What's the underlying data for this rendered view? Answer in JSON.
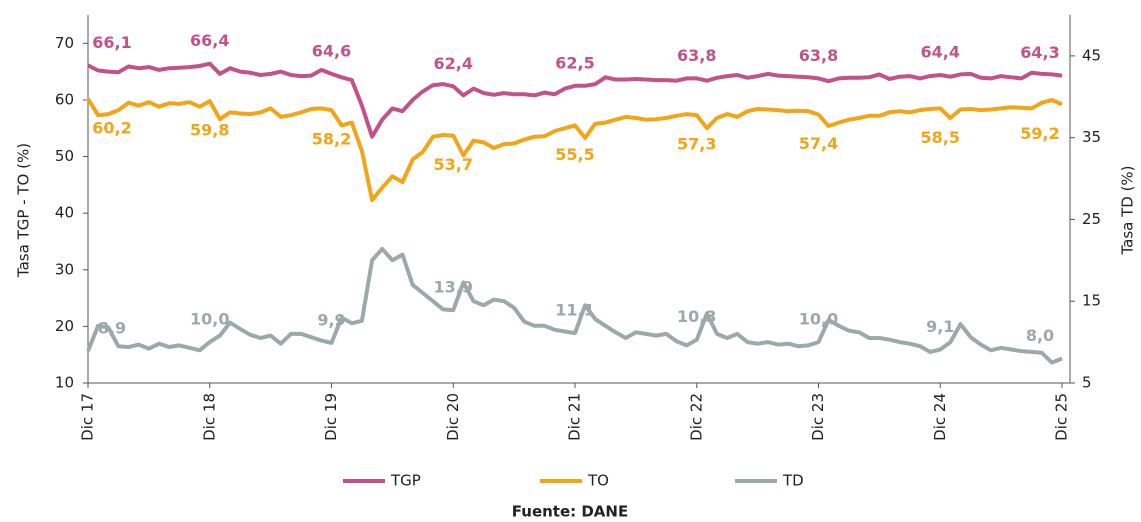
{
  "chart_data": {
    "type": "line",
    "y_label": "Tasa TGP - TO (%)",
    "y2_label": "Tasa TD (%)",
    "source": "Fuente: DANE",
    "ylim": [
      10,
      75
    ],
    "yticks": [
      10,
      20,
      30,
      40,
      50,
      60,
      70
    ],
    "y2lim": [
      5,
      50
    ],
    "y2ticks": [
      5,
      15,
      25,
      35,
      45
    ],
    "categories": [
      "Dic 17",
      null,
      null,
      null,
      null,
      null,
      null,
      null,
      null,
      null,
      null,
      null,
      "Dic 18",
      null,
      null,
      null,
      null,
      null,
      null,
      null,
      null,
      null,
      null,
      null,
      "Dic 19",
      null,
      null,
      null,
      null,
      null,
      null,
      null,
      null,
      null,
      null,
      null,
      "Dic 20",
      null,
      null,
      null,
      null,
      null,
      null,
      null,
      null,
      null,
      null,
      null,
      "Dic 21",
      null,
      null,
      null,
      null,
      null,
      null,
      null,
      null,
      null,
      null,
      null,
      "Dic 22",
      null,
      null,
      null,
      null,
      null,
      null,
      null,
      null,
      null,
      null,
      null,
      "Dic 23",
      null,
      null,
      null,
      null,
      null,
      null,
      null,
      null,
      null,
      null,
      null,
      "Dic 24",
      null,
      null,
      null,
      null,
      null,
      null,
      null,
      null,
      null,
      null,
      null,
      "Dic 25"
    ],
    "series": [
      {
        "name": "TGP",
        "color": "#c2528a",
        "label_pos": "above",
        "values": [
          66.1,
          65.2,
          65.0,
          64.9,
          65.9,
          65.6,
          65.8,
          65.3,
          65.6,
          65.7,
          65.8,
          66.0,
          66.4,
          64.6,
          65.6,
          65.0,
          64.8,
          64.4,
          64.6,
          65.0,
          64.4,
          64.2,
          64.3,
          65.3,
          64.6,
          64.0,
          63.5,
          59.0,
          53.5,
          56.5,
          58.5,
          58.0,
          60.0,
          61.5,
          62.6,
          62.8,
          62.4,
          60.8,
          62.0,
          61.2,
          60.9,
          61.2,
          61.0,
          61.0,
          60.8,
          61.3,
          61.0,
          62.0,
          62.5,
          62.5,
          62.8,
          64.0,
          63.6,
          63.6,
          63.7,
          63.6,
          63.5,
          63.5,
          63.4,
          63.8,
          63.8,
          63.4,
          63.9,
          64.2,
          64.4,
          63.9,
          64.2,
          64.6,
          64.3,
          64.2,
          64.1,
          64.0,
          63.8,
          63.3,
          63.8,
          63.9,
          63.9,
          64.0,
          64.5,
          63.7,
          64.1,
          64.2,
          63.8,
          64.2,
          64.4,
          64.1,
          64.5,
          64.6,
          63.9,
          63.8,
          64.2,
          64.0,
          63.8,
          64.8,
          64.6,
          64.5,
          64.3
        ],
        "value_labels": [
          "66,1",
          null,
          null,
          null,
          null,
          null,
          null,
          null,
          null,
          null,
          null,
          null,
          "66,4",
          null,
          null,
          null,
          null,
          null,
          null,
          null,
          null,
          null,
          null,
          null,
          "64,6",
          null,
          null,
          null,
          null,
          null,
          null,
          null,
          null,
          null,
          null,
          null,
          "62,4",
          null,
          null,
          null,
          null,
          null,
          null,
          null,
          null,
          null,
          null,
          null,
          "62,5",
          null,
          null,
          null,
          null,
          null,
          null,
          null,
          null,
          null,
          null,
          null,
          "63,8",
          null,
          null,
          null,
          null,
          null,
          null,
          null,
          null,
          null,
          null,
          null,
          "63,8",
          null,
          null,
          null,
          null,
          null,
          null,
          null,
          null,
          null,
          null,
          null,
          "64,4",
          null,
          null,
          null,
          null,
          null,
          null,
          null,
          null,
          null,
          null,
          null,
          "64,3"
        ]
      },
      {
        "name": "TO",
        "color": "#f2a516",
        "label_pos": "below",
        "values": [
          60.2,
          57.3,
          57.5,
          58.2,
          59.5,
          59.0,
          59.6,
          58.8,
          59.4,
          59.3,
          59.6,
          58.8,
          59.8,
          56.6,
          57.8,
          57.6,
          57.5,
          57.8,
          58.5,
          57.0,
          57.3,
          57.8,
          58.4,
          58.5,
          58.2,
          55.5,
          56.0,
          51.0,
          42.3,
          44.5,
          46.5,
          45.5,
          49.5,
          50.8,
          53.5,
          53.8,
          53.7,
          50.2,
          52.8,
          52.5,
          51.5,
          52.2,
          52.3,
          53.0,
          53.5,
          53.6,
          54.5,
          55.0,
          55.5,
          53.3,
          55.8,
          56.0,
          56.5,
          57.0,
          56.8,
          56.5,
          56.6,
          56.8,
          57.2,
          57.5,
          57.3,
          55.0,
          56.8,
          57.5,
          57.0,
          58.0,
          58.4,
          58.3,
          58.2,
          58.0,
          58.1,
          58.0,
          57.4,
          55.4,
          56.0,
          56.5,
          56.8,
          57.2,
          57.2,
          57.8,
          58.0,
          57.8,
          58.2,
          58.4,
          58.5,
          56.8,
          58.3,
          58.4,
          58.2,
          58.3,
          58.5,
          58.7,
          58.6,
          58.5,
          59.5,
          60.0,
          59.2
        ],
        "value_labels": [
          "60,2",
          null,
          null,
          null,
          null,
          null,
          null,
          null,
          null,
          null,
          null,
          null,
          "59,8",
          null,
          null,
          null,
          null,
          null,
          null,
          null,
          null,
          null,
          null,
          null,
          "58,2",
          null,
          null,
          null,
          null,
          null,
          null,
          null,
          null,
          null,
          null,
          null,
          "53,7",
          null,
          null,
          null,
          null,
          null,
          null,
          null,
          null,
          null,
          null,
          null,
          "55,5",
          null,
          null,
          null,
          null,
          null,
          null,
          null,
          null,
          null,
          null,
          null,
          "57,3",
          null,
          null,
          null,
          null,
          null,
          null,
          null,
          null,
          null,
          null,
          null,
          "57,4",
          null,
          null,
          null,
          null,
          null,
          null,
          null,
          null,
          null,
          null,
          null,
          "58,5",
          null,
          null,
          null,
          null,
          null,
          null,
          null,
          null,
          null,
          null,
          null,
          "59,2"
        ]
      },
      {
        "name": "TD",
        "color": "#9aaaa8",
        "axis": "y2",
        "label_pos": "above",
        "values": [
          8.9,
          12.0,
          11.8,
          9.5,
          9.4,
          9.7,
          9.2,
          9.8,
          9.4,
          9.6,
          9.3,
          9.0,
          10.0,
          10.8,
          12.4,
          11.6,
          10.9,
          10.5,
          10.8,
          9.8,
          11.0,
          11.0,
          10.6,
          10.2,
          9.9,
          13.0,
          12.3,
          12.6,
          20.0,
          21.4,
          20.0,
          20.7,
          17.0,
          16.0,
          15.0,
          14.0,
          13.9,
          17.3,
          15.0,
          14.5,
          15.2,
          15.0,
          14.2,
          12.5,
          12.0,
          12.0,
          11.5,
          11.3,
          11.1,
          14.5,
          12.8,
          12.0,
          11.2,
          10.5,
          11.2,
          11.0,
          10.8,
          11.0,
          10.1,
          9.6,
          10.3,
          13.5,
          11.0,
          10.5,
          11.0,
          10.0,
          9.8,
          10.0,
          9.7,
          9.8,
          9.5,
          9.6,
          10.0,
          12.7,
          12.0,
          11.4,
          11.2,
          10.5,
          10.5,
          10.3,
          10.0,
          9.8,
          9.5,
          8.8,
          9.1,
          10.0,
          12.2,
          10.6,
          9.7,
          9.0,
          9.3,
          9.1,
          8.9,
          8.8,
          8.7,
          7.5,
          8.0
        ],
        "value_labels": [
          "8,9",
          null,
          null,
          null,
          null,
          null,
          null,
          null,
          null,
          null,
          null,
          null,
          "10,0",
          null,
          null,
          null,
          null,
          null,
          null,
          null,
          null,
          null,
          null,
          null,
          "9,9",
          null,
          null,
          null,
          null,
          null,
          null,
          null,
          null,
          null,
          null,
          null,
          "13,9",
          null,
          null,
          null,
          null,
          null,
          null,
          null,
          null,
          null,
          null,
          null,
          "11,1",
          null,
          null,
          null,
          null,
          null,
          null,
          null,
          null,
          null,
          null,
          null,
          "10,3",
          null,
          null,
          null,
          null,
          null,
          null,
          null,
          null,
          null,
          null,
          null,
          "10,0",
          null,
          null,
          null,
          null,
          null,
          null,
          null,
          null,
          null,
          null,
          null,
          "9,1",
          null,
          null,
          null,
          null,
          null,
          null,
          null,
          null,
          null,
          null,
          null,
          "8,0"
        ]
      }
    ]
  }
}
